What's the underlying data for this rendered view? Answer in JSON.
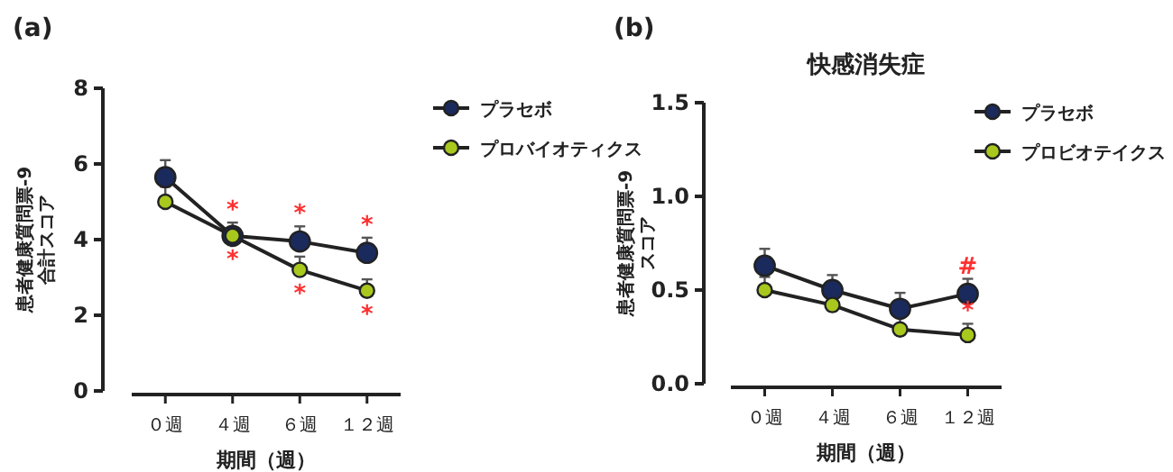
{
  "chart_data": [
    {
      "type": "line",
      "annotations": [
        "(a)",
        {
          "text": "*",
          "x": "４週",
          "y": 4.1
        },
        {
          "text": "*",
          "x": "４週",
          "y": 4.1
        },
        {
          "text": "*",
          "x": "６週",
          "y": 3.95
        },
        {
          "text": "*",
          "x": "６週",
          "y": 3.2
        },
        {
          "text": "*",
          "x": "１２週",
          "y": 3.65
        },
        {
          "text": "*",
          "x": "１２週",
          "y": 2.65
        }
      ],
      "xlabel": "期間（週）",
      "ylabel": "患者健康質問票-9\n合計スコア",
      "categories": [
        "０週",
        "４週",
        "６週",
        "１２週"
      ],
      "series": [
        {
          "name": "プラセボ",
          "color": "#1a2a5c",
          "values": [
            5.65,
            4.1,
            3.95,
            3.65
          ],
          "errors": [
            [
              5.65,
              6.1
            ],
            [
              4.1,
              4.45
            ],
            [
              3.95,
              4.35
            ],
            [
              3.65,
              4.05
            ]
          ]
        },
        {
          "name": "プロバイオティクス",
          "color": "#a8c81e",
          "values": [
            5.0,
            4.1,
            3.2,
            2.65
          ],
          "errors": [
            [
              5.0,
              5.4
            ],
            [
              4.1,
              4.3
            ],
            [
              3.2,
              3.55
            ],
            [
              2.65,
              2.95
            ]
          ]
        }
      ],
      "ylim": [
        0,
        8
      ],
      "yticks": [
        0,
        2,
        4,
        6,
        8
      ],
      "marker": "circle",
      "legend": "right",
      "grid": false
    },
    {
      "type": "line",
      "title": "快感消失症",
      "annotations": [
        "(b)",
        {
          "text": "#",
          "x": "１２週",
          "y": 0.48
        },
        {
          "text": "*",
          "x": "１２週",
          "y": 0.26
        }
      ],
      "xlabel": "期間（週）",
      "ylabel": "患者健康質問票-9\nスコア",
      "categories": [
        "０週",
        "４週",
        "６週",
        "１２週"
      ],
      "series": [
        {
          "name": "プラセボ",
          "color": "#1a2a5c",
          "values": [
            0.63,
            0.5,
            0.4,
            0.48
          ],
          "errors": [
            [
              0.63,
              0.72
            ],
            [
              0.5,
              0.58
            ],
            [
              0.4,
              0.485
            ],
            [
              0.48,
              0.56
            ]
          ]
        },
        {
          "name": "プロビオテイクス",
          "color": "#a8c81e",
          "values": [
            0.5,
            0.42,
            0.29,
            0.26
          ],
          "errors": [
            [
              0.5,
              0.57
            ],
            [
              0.42,
              0.45
            ],
            [
              0.29,
              0.36
            ],
            [
              0.26,
              0.32
            ]
          ]
        }
      ],
      "ylim": [
        0,
        1.5
      ],
      "yticks": [
        {
          "value": 0,
          "label": "0.0"
        },
        0.5,
        {
          "value": 1,
          "label": "1.0"
        },
        1.5
      ],
      "marker": "circle",
      "legend": "right",
      "grid": false
    }
  ]
}
